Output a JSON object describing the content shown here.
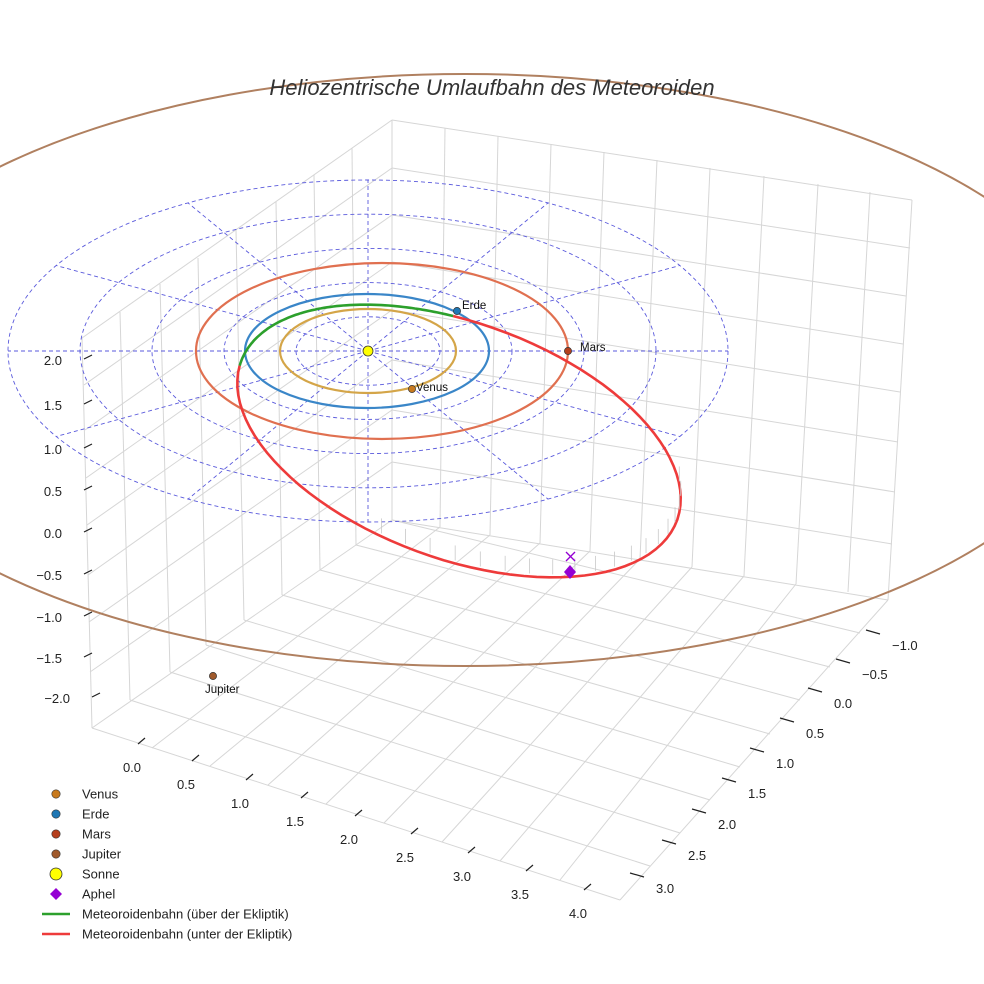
{
  "chart_data": {
    "type": "3d-orbit",
    "title": "Heliozentrische Umlaufbahn des Meteoroiden",
    "z_ticks": [
      "2.0",
      "1.5",
      "1.0",
      "0.5",
      "0.0",
      "−0.5",
      "−1.0",
      "−1.5",
      "−2.0"
    ],
    "x_ticks": [
      "0.0",
      "0.5",
      "1.0",
      "1.5",
      "2.0",
      "2.5",
      "3.0",
      "3.5",
      "4.0"
    ],
    "y_ticks": [
      "−1.0",
      "−0.5",
      "0.0",
      "0.5",
      "1.0",
      "1.5",
      "2.0",
      "2.5",
      "3.0"
    ],
    "grid": true,
    "ecliptic_rings": [
      0.6,
      1.2,
      1.8,
      2.4,
      3.0
    ],
    "planets": [
      {
        "name": "Venus",
        "label": "Venus",
        "radius": 0.72,
        "color": "#d4a548",
        "marker": "#c87a1e"
      },
      {
        "name": "Erde",
        "label": "Erde",
        "radius": 1.0,
        "color": "#3a86c8",
        "marker": "#1f77b4"
      },
      {
        "name": "Mars",
        "label": "Mars",
        "radius": 1.52,
        "color": "#e07050",
        "marker": "#b5401e"
      },
      {
        "name": "Jupiter",
        "label": "Jupiter",
        "radius": 5.2,
        "color": "#b08060",
        "marker": "#a05a2c"
      }
    ],
    "sun": {
      "name": "Sonne",
      "color": "#ffff00"
    },
    "aphel": {
      "name": "Aphel",
      "color": "#9400d3"
    },
    "meteoroid_orbit": {
      "above_label": "Meteoroidenbahn (über der Ekliptik)",
      "below_label": "Meteoroidenbahn (unter der Ekliptik)",
      "above_color": "#2ca02c",
      "below_color": "#ee3b3b"
    },
    "legend": {
      "position": "bottom-left",
      "entries": [
        {
          "label": "Venus",
          "kind": "dot",
          "color": "#c87a1e"
        },
        {
          "label": "Erde",
          "kind": "dot",
          "color": "#1f77b4"
        },
        {
          "label": "Mars",
          "kind": "dot",
          "color": "#b5401e"
        },
        {
          "label": "Jupiter",
          "kind": "dot",
          "color": "#a05a2c"
        },
        {
          "label": "Sonne",
          "kind": "big-dot",
          "color": "#ffff00"
        },
        {
          "label": "Aphel",
          "kind": "diamond",
          "color": "#9400d3"
        },
        {
          "label": "Meteoroidenbahn (über der Ekliptik)",
          "kind": "line",
          "color": "#2ca02c"
        },
        {
          "label": "Meteoroidenbahn (unter der Ekliptik)",
          "kind": "line",
          "color": "#ee3b3b"
        }
      ]
    }
  }
}
